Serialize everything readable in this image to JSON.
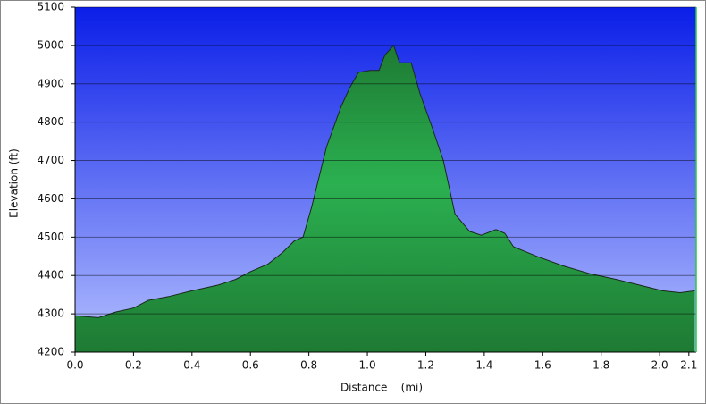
{
  "chart_data": {
    "type": "area",
    "x_label": "Distance    (mi)",
    "y_label": "Elevation (ft)",
    "x": [
      0.0,
      0.08,
      0.14,
      0.2,
      0.25,
      0.32,
      0.4,
      0.49,
      0.55,
      0.6,
      0.66,
      0.71,
      0.75,
      0.78,
      0.81,
      0.86,
      0.91,
      0.94,
      0.97,
      1.01,
      1.04,
      1.06,
      1.09,
      1.11,
      1.15,
      1.18,
      1.22,
      1.26,
      1.3,
      1.35,
      1.39,
      1.44,
      1.47,
      1.5,
      1.58,
      1.67,
      1.76,
      1.85,
      1.93,
      2.01,
      2.07,
      2.12
    ],
    "values": [
      4295,
      4290,
      4305,
      4315,
      4335,
      4345,
      4360,
      4375,
      4390,
      4410,
      4430,
      4460,
      4490,
      4500,
      4580,
      4735,
      4840,
      4890,
      4930,
      4935,
      4935,
      4975,
      5000,
      4955,
      4955,
      4875,
      4790,
      4700,
      4560,
      4515,
      4505,
      4520,
      4510,
      4475,
      4450,
      4425,
      4405,
      4390,
      4375,
      4360,
      4355,
      4360
    ],
    "color": "#22aa44",
    "xlim": [
      0,
      2.125
    ],
    "ylim": [
      4200,
      5100
    ],
    "xticks": [
      {
        "value": 0,
        "label": "0.0"
      },
      0.2,
      0.4,
      0.6,
      0.8,
      {
        "value": 1,
        "label": "1.0"
      },
      1.2,
      1.4,
      1.6,
      1.8,
      {
        "value": 2,
        "label": "2.0"
      },
      2.1
    ],
    "yticks": [
      4200,
      4300,
      4400,
      4500,
      4600,
      4700,
      4800,
      4900,
      5000,
      5100
    ],
    "grid": true
  }
}
